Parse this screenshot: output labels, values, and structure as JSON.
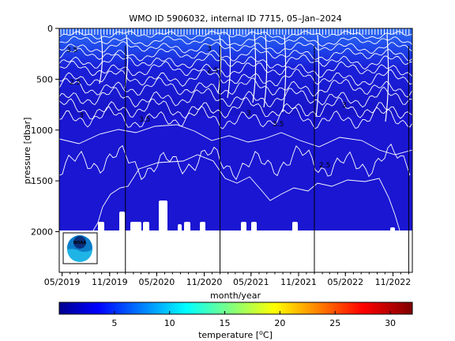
{
  "chart_data": {
    "type": "heatmap",
    "title": "WMO ID 5906032, internal ID 7715, 05–Jan–2024",
    "xlabel": "month/year",
    "ylabel": "pressure [dbar]",
    "x_ticks": [
      "05/2019",
      "11/2019",
      "05/2020",
      "11/2020",
      "05/2021",
      "11/2021",
      "05/2022",
      "11/2022"
    ],
    "y_ticks": [
      0,
      500,
      1000,
      1500,
      2000
    ],
    "ylim": [
      2400,
      0
    ],
    "y_inverted": true,
    "xlim": [
      "2019-04-20",
      "2023-01-15"
    ],
    "profile_max_pressure_dbar": 2000,
    "contour_labels": [
      "3.5",
      "3",
      "2.5",
      "2.5",
      "3",
      "3.5",
      "3",
      "3.5",
      "3",
      "2.5"
    ],
    "colorbar": {
      "label": "temperature [°C]",
      "label_prefix": "temperature [",
      "label_unit": "C]",
      "ticks": [
        5,
        10,
        15,
        20,
        25,
        30
      ],
      "range": [
        0,
        32
      ]
    },
    "year_boundaries": [
      "2020-01-01",
      "2021-01-01",
      "2022-01-01",
      "2023-01-01"
    ],
    "colors": {
      "field": "#1a16d2",
      "surface": "#1e4cf0",
      "contour": "#ffffff"
    }
  },
  "logo": {
    "text": "NOAA"
  }
}
